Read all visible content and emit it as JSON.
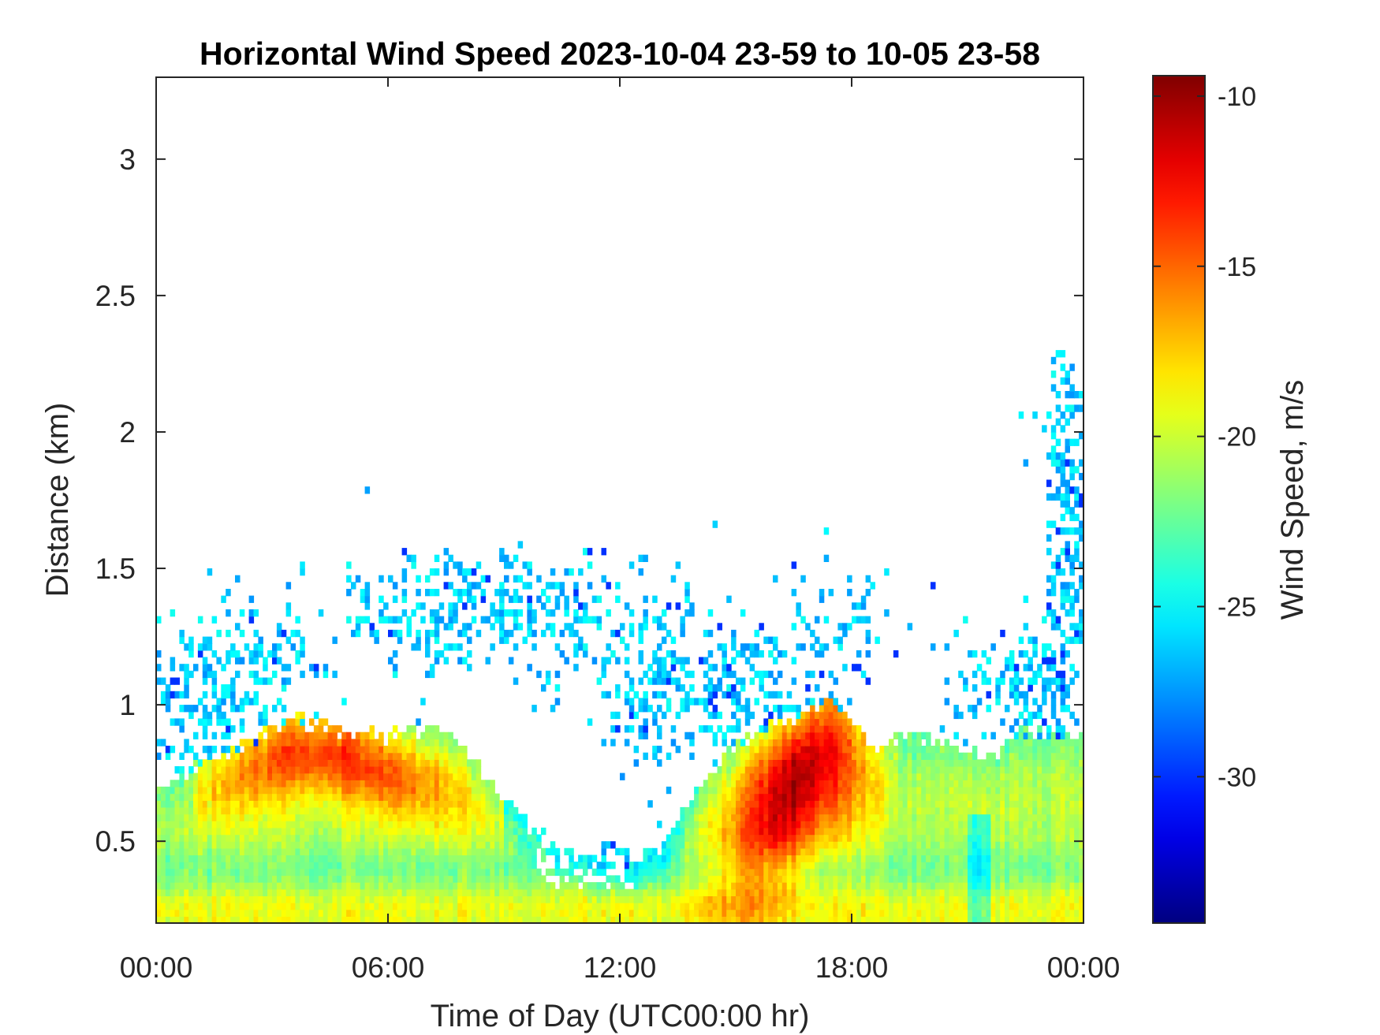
{
  "chart_data": {
    "type": "heatmap",
    "title": "Horizontal Wind Speed 2023-10-04 23-59 to 10-05 23-58",
    "xlabel": "Time of Day (UTC00:00 hr)",
    "ylabel": "Distance (km)",
    "xlim": [
      0,
      24
    ],
    "ylim": [
      0.2,
      3.3
    ],
    "x_ticks": [
      0,
      6,
      12,
      18,
      24
    ],
    "x_tick_labels": [
      "00:00",
      "06:00",
      "12:00",
      "18:00",
      "00:00"
    ],
    "y_ticks": [
      0.5,
      1,
      1.5,
      2,
      2.5,
      3
    ],
    "y_tick_labels": [
      "0.5",
      "1",
      "1.5",
      "2",
      "2.5",
      "3"
    ],
    "colorbar": {
      "label": "Wind Speed, m/s",
      "clim": [
        -34.3,
        -9.4
      ],
      "ticks": [
        -30,
        -25,
        -20,
        -15,
        -10
      ],
      "tick_labels": [
        "-30",
        "-25",
        "-20",
        "-15",
        "-10"
      ],
      "colormap": "jet"
    },
    "regions": [
      {
        "desc": "low-level layer",
        "t": [
          0,
          24
        ],
        "top_km": [
          0.65,
          1.0
        ],
        "speed": [
          -22,
          -17
        ]
      },
      {
        "desc": "morning jet",
        "t": [
          1.5,
          8.5
        ],
        "z": [
          0.55,
          0.95
        ],
        "speed": [
          -16,
          -12
        ]
      },
      {
        "desc": "afternoon jet",
        "t": [
          14.5,
          18.5
        ],
        "z": [
          0.3,
          1.05
        ],
        "speed": [
          -12,
          -9.5
        ]
      },
      {
        "desc": "scattered returns",
        "t": [
          0,
          24
        ],
        "z": [
          0.9,
          2.2
        ],
        "speed": [
          -27,
          -23
        ]
      }
    ]
  }
}
